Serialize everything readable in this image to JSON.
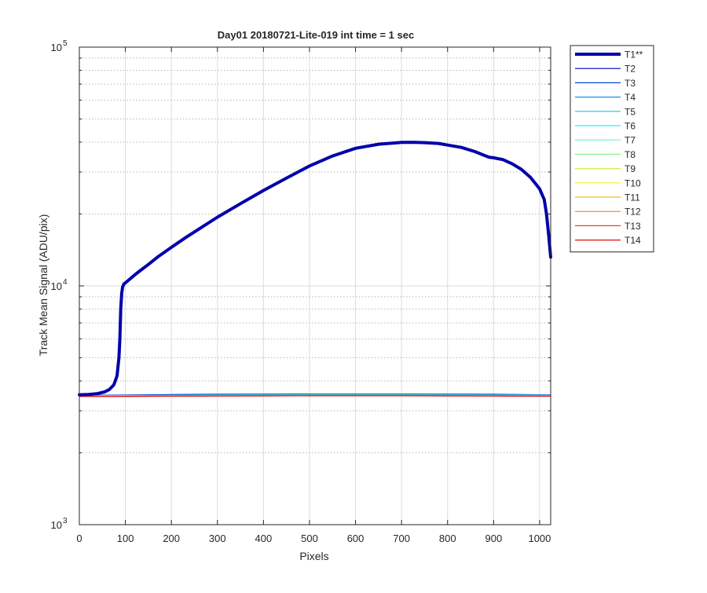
{
  "chart_data": {
    "type": "line",
    "title": "Day01 20180721-Lite-019 int time = 1 sec",
    "xlabel": "Pixels",
    "ylabel": "Track Mean Signal (ADU/pix)",
    "xlim": [
      0,
      1024
    ],
    "ylim": [
      1000,
      100000
    ],
    "y_scale": "log",
    "grid": true,
    "legend_position": "outside-right",
    "x_ticks": [
      0,
      100,
      200,
      300,
      400,
      500,
      600,
      700,
      800,
      900,
      1000
    ],
    "x_tick_labels": [
      "0",
      "100",
      "200",
      "300",
      "400",
      "500",
      "600",
      "700",
      "800",
      "900",
      "1000"
    ],
    "y_ticks": [
      1000,
      10000,
      100000
    ],
    "y_tick_labels": [
      {
        "base": "10",
        "exp": "3"
      },
      {
        "base": "10",
        "exp": "4"
      },
      {
        "base": "10",
        "exp": "5"
      }
    ],
    "series": [
      {
        "name": "T1**",
        "color": "#0000aa",
        "width": 4,
        "x": [
          0,
          20,
          40,
          55,
          65,
          75,
          82,
          86,
          88,
          90,
          92,
          94,
          97,
          100,
          110,
          120,
          130,
          150,
          170,
          200,
          230,
          260,
          300,
          350,
          400,
          450,
          500,
          550,
          600,
          650,
          700,
          730,
          750,
          780,
          800,
          830,
          860,
          880,
          890,
          900,
          920,
          940,
          960,
          980,
          1000,
          1010,
          1015,
          1020,
          1024
        ],
        "y": [
          3500,
          3510,
          3540,
          3600,
          3680,
          3850,
          4200,
          5000,
          6000,
          8000,
          9300,
          9900,
          10200,
          10300,
          10700,
          11100,
          11500,
          12300,
          13200,
          14500,
          15900,
          17300,
          19400,
          22100,
          25100,
          28300,
          31800,
          35000,
          37700,
          39200,
          39900,
          39900,
          39800,
          39500,
          38900,
          38000,
          36500,
          35200,
          34600,
          34400,
          33800,
          32500,
          30800,
          28500,
          25500,
          23000,
          20000,
          16000,
          13200
        ]
      },
      {
        "name": "T2",
        "color": "#0000c0",
        "width": 1.2,
        "x": [
          0,
          100,
          200,
          300,
          400,
          500,
          600,
          700,
          800,
          900,
          1000,
          1024
        ],
        "y": [
          3480,
          3490,
          3505,
          3515,
          3520,
          3525,
          3525,
          3525,
          3520,
          3515,
          3500,
          3495
        ]
      },
      {
        "name": "T3",
        "color": "#0048d0",
        "width": 1.2,
        "x": [
          0,
          100,
          200,
          300,
          400,
          500,
          600,
          700,
          800,
          900,
          1000,
          1024
        ],
        "y": [
          3470,
          3480,
          3495,
          3505,
          3510,
          3515,
          3515,
          3515,
          3510,
          3505,
          3495,
          3490
        ]
      },
      {
        "name": "T4",
        "color": "#1090e8",
        "width": 1.2,
        "x": [
          0,
          100,
          200,
          300,
          400,
          500,
          600,
          700,
          800,
          900,
          1000,
          1024
        ],
        "y": [
          3470,
          3475,
          3485,
          3495,
          3500,
          3505,
          3505,
          3505,
          3500,
          3495,
          3490,
          3485
        ]
      },
      {
        "name": "T5",
        "color": "#20c0f0",
        "width": 1.2,
        "x": [
          0,
          100,
          200,
          300,
          400,
          500,
          600,
          700,
          800,
          900,
          1000,
          1024
        ],
        "y": [
          3465,
          3470,
          3480,
          3488,
          3492,
          3495,
          3495,
          3495,
          3492,
          3488,
          3482,
          3480
        ]
      },
      {
        "name": "T6",
        "color": "#30f0f0",
        "width": 1.2,
        "x": [
          0,
          100,
          200,
          300,
          400,
          500,
          600,
          700,
          800,
          900,
          1000,
          1024
        ],
        "y": [
          3460,
          3465,
          3475,
          3482,
          3486,
          3490,
          3490,
          3490,
          3486,
          3482,
          3478,
          3475
        ]
      },
      {
        "name": "T7",
        "color": "#70f0d0",
        "width": 1.2,
        "x": [
          0,
          100,
          200,
          300,
          400,
          500,
          600,
          700,
          800,
          900,
          1000,
          1024
        ],
        "y": [
          3460,
          3462,
          3470,
          3478,
          3482,
          3485,
          3485,
          3485,
          3482,
          3478,
          3474,
          3472
        ]
      },
      {
        "name": "T8",
        "color": "#90f090",
        "width": 1.2,
        "x": [
          0,
          100,
          200,
          300,
          400,
          500,
          600,
          700,
          800,
          900,
          1000,
          1024
        ],
        "y": [
          3455,
          3460,
          3467,
          3474,
          3478,
          3482,
          3482,
          3482,
          3478,
          3474,
          3470,
          3468
        ]
      },
      {
        "name": "T9",
        "color": "#c8f050",
        "width": 1.2,
        "x": [
          0,
          100,
          200,
          300,
          400,
          500,
          600,
          700,
          800,
          900,
          1000,
          1024
        ],
        "y": [
          3455,
          3458,
          3464,
          3470,
          3474,
          3478,
          3478,
          3478,
          3474,
          3470,
          3466,
          3465
        ]
      },
      {
        "name": "T10",
        "color": "#f0f020",
        "width": 1.2,
        "x": [
          0,
          100,
          200,
          300,
          400,
          500,
          600,
          700,
          800,
          900,
          1000,
          1024
        ],
        "y": [
          3452,
          3455,
          3462,
          3468,
          3472,
          3475,
          3475,
          3475,
          3472,
          3468,
          3464,
          3462
        ]
      },
      {
        "name": "T11",
        "color": "#f0c020",
        "width": 1.2,
        "x": [
          0,
          100,
          200,
          300,
          400,
          500,
          600,
          700,
          800,
          900,
          1000,
          1024
        ],
        "y": [
          3450,
          3453,
          3460,
          3465,
          3470,
          3472,
          3472,
          3472,
          3470,
          3465,
          3462,
          3460
        ]
      },
      {
        "name": "T12",
        "color": "#f08020",
        "width": 1.2,
        "x": [
          0,
          100,
          200,
          300,
          400,
          500,
          600,
          700,
          800,
          900,
          1000,
          1024
        ],
        "y": [
          3448,
          3450,
          3456,
          3462,
          3466,
          3470,
          3470,
          3470,
          3466,
          3462,
          3458,
          3456
        ]
      },
      {
        "name": "T13",
        "color": "#f04020",
        "width": 1.2,
        "x": [
          0,
          100,
          200,
          300,
          400,
          500,
          600,
          700,
          800,
          900,
          1000,
          1024
        ],
        "y": [
          3446,
          3448,
          3454,
          3460,
          3464,
          3467,
          3467,
          3467,
          3464,
          3460,
          3456,
          3454
        ]
      },
      {
        "name": "T14",
        "color": "#e01010",
        "width": 1.2,
        "x": [
          0,
          100,
          200,
          300,
          400,
          500,
          600,
          700,
          800,
          900,
          1000,
          1024
        ],
        "y": [
          3445,
          3446,
          3452,
          3458,
          3462,
          3465,
          3465,
          3465,
          3462,
          3458,
          3454,
          3452
        ]
      }
    ]
  }
}
